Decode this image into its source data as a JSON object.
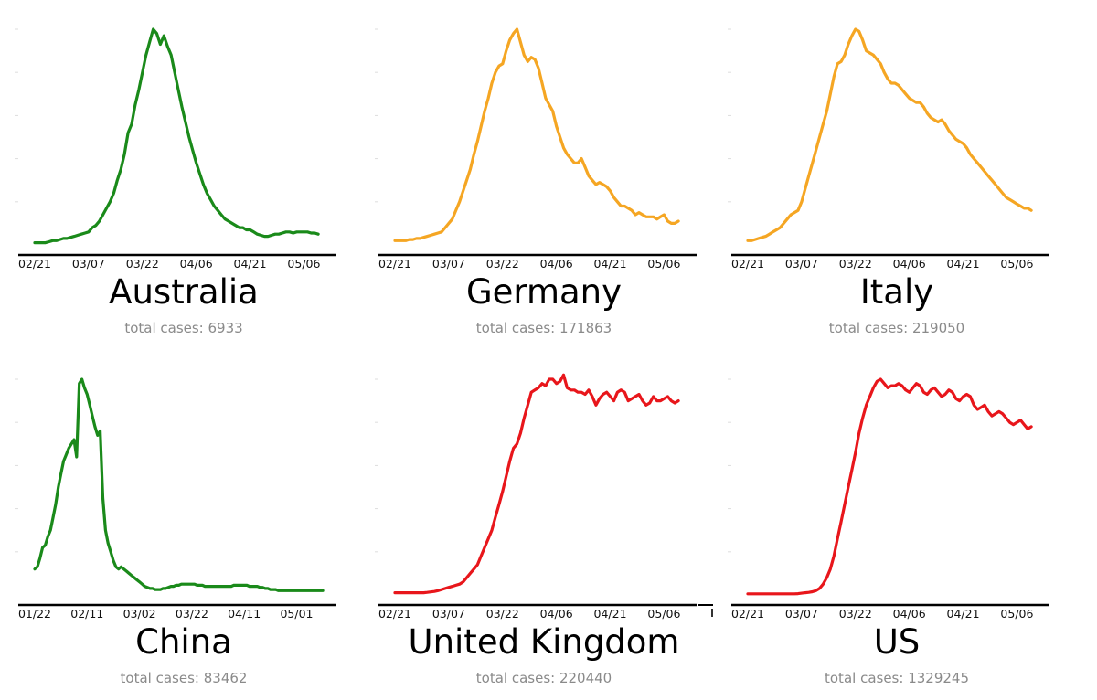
{
  "chart_data": [
    {
      "type": "line",
      "title": "Australia",
      "subtitle_label": "total cases: ",
      "subtitle_value": "6933",
      "color": "#1a8a1a",
      "x_ticks": [
        "02/21",
        "03/07",
        "03/22",
        "04/06",
        "04/21",
        "05/06"
      ],
      "tick_idx": [
        0,
        15,
        30,
        45,
        60,
        75
      ],
      "x_range": [
        0,
        81
      ],
      "ylim": [
        0,
        1
      ],
      "grid": false,
      "y": [
        0.01,
        0.01,
        0.01,
        0.01,
        0.015,
        0.02,
        0.02,
        0.025,
        0.03,
        0.03,
        0.035,
        0.04,
        0.045,
        0.05,
        0.055,
        0.06,
        0.08,
        0.09,
        0.11,
        0.14,
        0.17,
        0.2,
        0.24,
        0.3,
        0.35,
        0.42,
        0.52,
        0.56,
        0.65,
        0.72,
        0.8,
        0.88,
        0.94,
        1.0,
        0.98,
        0.93,
        0.97,
        0.92,
        0.88,
        0.8,
        0.72,
        0.64,
        0.57,
        0.5,
        0.44,
        0.38,
        0.33,
        0.28,
        0.24,
        0.21,
        0.18,
        0.16,
        0.14,
        0.12,
        0.11,
        0.1,
        0.09,
        0.08,
        0.08,
        0.07,
        0.07,
        0.06,
        0.05,
        0.045,
        0.04,
        0.04,
        0.045,
        0.05,
        0.05,
        0.055,
        0.06,
        0.06,
        0.055,
        0.06,
        0.06,
        0.06,
        0.06,
        0.055,
        0.055,
        0.05
      ]
    },
    {
      "type": "line",
      "title": "Germany",
      "subtitle_label": "total cases: ",
      "subtitle_value": "171863",
      "color": "#f5a623",
      "x_ticks": [
        "02/21",
        "03/07",
        "03/22",
        "04/06",
        "04/21",
        "05/06"
      ],
      "tick_idx": [
        0,
        15,
        30,
        45,
        60,
        75
      ],
      "x_range": [
        0,
        81
      ],
      "ylim": [
        0,
        1
      ],
      "grid": false,
      "y": [
        0.02,
        0.02,
        0.02,
        0.02,
        0.025,
        0.025,
        0.03,
        0.03,
        0.035,
        0.04,
        0.045,
        0.05,
        0.055,
        0.06,
        0.08,
        0.1,
        0.12,
        0.16,
        0.2,
        0.25,
        0.3,
        0.35,
        0.42,
        0.48,
        0.55,
        0.62,
        0.68,
        0.75,
        0.8,
        0.83,
        0.84,
        0.9,
        0.95,
        0.98,
        1.0,
        0.94,
        0.88,
        0.85,
        0.87,
        0.86,
        0.82,
        0.75,
        0.68,
        0.65,
        0.62,
        0.55,
        0.5,
        0.45,
        0.42,
        0.4,
        0.38,
        0.38,
        0.4,
        0.36,
        0.32,
        0.3,
        0.28,
        0.29,
        0.28,
        0.27,
        0.25,
        0.22,
        0.2,
        0.18,
        0.18,
        0.17,
        0.16,
        0.14,
        0.15,
        0.14,
        0.13,
        0.13,
        0.13,
        0.12,
        0.13,
        0.14,
        0.11,
        0.1,
        0.1,
        0.11
      ]
    },
    {
      "type": "line",
      "title": "Italy",
      "subtitle_label": "total cases: ",
      "subtitle_value": "219050",
      "color": "#f5a623",
      "x_ticks": [
        "02/21",
        "03/07",
        "03/22",
        "04/06",
        "04/21",
        "05/06"
      ],
      "tick_idx": [
        0,
        15,
        30,
        45,
        60,
        75
      ],
      "x_range": [
        0,
        81
      ],
      "ylim": [
        0,
        1
      ],
      "grid": false,
      "y": [
        0.02,
        0.02,
        0.025,
        0.03,
        0.035,
        0.04,
        0.05,
        0.06,
        0.07,
        0.08,
        0.1,
        0.12,
        0.14,
        0.15,
        0.16,
        0.2,
        0.26,
        0.32,
        0.38,
        0.44,
        0.5,
        0.56,
        0.62,
        0.7,
        0.78,
        0.84,
        0.85,
        0.88,
        0.93,
        0.97,
        1.0,
        0.99,
        0.95,
        0.9,
        0.89,
        0.88,
        0.86,
        0.84,
        0.8,
        0.77,
        0.75,
        0.75,
        0.74,
        0.72,
        0.7,
        0.68,
        0.67,
        0.66,
        0.66,
        0.64,
        0.61,
        0.59,
        0.58,
        0.57,
        0.58,
        0.56,
        0.53,
        0.51,
        0.49,
        0.48,
        0.47,
        0.45,
        0.42,
        0.4,
        0.38,
        0.36,
        0.34,
        0.32,
        0.3,
        0.28,
        0.26,
        0.24,
        0.22,
        0.21,
        0.2,
        0.19,
        0.18,
        0.17,
        0.17,
        0.16
      ]
    },
    {
      "type": "line",
      "title": "China",
      "subtitle_label": "total cases: ",
      "subtitle_value": "83462",
      "color": "#1a8a1a",
      "x_ticks": [
        "01/22",
        "02/11",
        "03/02",
        "03/22",
        "04/11",
        "05/01"
      ],
      "tick_idx": [
        0,
        20,
        40,
        60,
        80,
        100
      ],
      "x_range": [
        0,
        111
      ],
      "ylim": [
        0,
        1
      ],
      "grid": false,
      "y": [
        0.12,
        0.13,
        0.17,
        0.22,
        0.23,
        0.27,
        0.3,
        0.36,
        0.42,
        0.5,
        0.56,
        0.62,
        0.65,
        0.68,
        0.7,
        0.72,
        0.64,
        0.98,
        1.0,
        0.96,
        0.93,
        0.88,
        0.83,
        0.78,
        0.74,
        0.76,
        0.45,
        0.3,
        0.24,
        0.2,
        0.16,
        0.13,
        0.12,
        0.13,
        0.12,
        0.11,
        0.1,
        0.09,
        0.08,
        0.07,
        0.06,
        0.05,
        0.04,
        0.035,
        0.03,
        0.03,
        0.025,
        0.025,
        0.025,
        0.03,
        0.03,
        0.035,
        0.04,
        0.04,
        0.045,
        0.045,
        0.05,
        0.05,
        0.05,
        0.05,
        0.05,
        0.05,
        0.045,
        0.045,
        0.045,
        0.04,
        0.04,
        0.04,
        0.04,
        0.04,
        0.04,
        0.04,
        0.04,
        0.04,
        0.04,
        0.04,
        0.045,
        0.045,
        0.045,
        0.045,
        0.045,
        0.045,
        0.04,
        0.04,
        0.04,
        0.04,
        0.035,
        0.035,
        0.03,
        0.03,
        0.025,
        0.025,
        0.025,
        0.02,
        0.02,
        0.02,
        0.02,
        0.02,
        0.02,
        0.02,
        0.02,
        0.02,
        0.02,
        0.02,
        0.02,
        0.02,
        0.02,
        0.02,
        0.02,
        0.02,
        0.02
      ]
    },
    {
      "type": "line",
      "title": "United Kingdom",
      "subtitle_label": "total cases: ",
      "subtitle_value": "220440",
      "color": "#e8161b",
      "x_ticks": [
        "02/21",
        "03/07",
        "03/22",
        "04/06",
        "04/21",
        "05/06"
      ],
      "tick_idx": [
        0,
        15,
        30,
        45,
        60,
        75
      ],
      "x_range": [
        0,
        81
      ],
      "ylim": [
        0,
        1
      ],
      "grid": false,
      "y": [
        0.01,
        0.01,
        0.01,
        0.01,
        0.01,
        0.01,
        0.01,
        0.01,
        0.01,
        0.012,
        0.014,
        0.016,
        0.02,
        0.025,
        0.03,
        0.035,
        0.04,
        0.045,
        0.05,
        0.06,
        0.08,
        0.1,
        0.12,
        0.14,
        0.18,
        0.22,
        0.26,
        0.3,
        0.36,
        0.42,
        0.48,
        0.55,
        0.62,
        0.68,
        0.7,
        0.75,
        0.82,
        0.88,
        0.94,
        0.95,
        0.96,
        0.98,
        0.97,
        1.0,
        1.0,
        0.98,
        0.99,
        1.02,
        0.96,
        0.95,
        0.95,
        0.94,
        0.94,
        0.93,
        0.95,
        0.92,
        0.88,
        0.91,
        0.93,
        0.94,
        0.92,
        0.9,
        0.94,
        0.95,
        0.94,
        0.9,
        0.91,
        0.92,
        0.93,
        0.9,
        0.88,
        0.89,
        0.92,
        0.9,
        0.9,
        0.91,
        0.92,
        0.9,
        0.89,
        0.9
      ]
    },
    {
      "type": "line",
      "title": "US",
      "subtitle_label": "total cases: ",
      "subtitle_value": "1329245",
      "color": "#e8161b",
      "x_ticks": [
        "02/21",
        "03/07",
        "03/22",
        "04/06",
        "04/21",
        "05/06"
      ],
      "tick_idx": [
        0,
        15,
        30,
        45,
        60,
        75
      ],
      "x_range": [
        0,
        81
      ],
      "ylim": [
        0,
        1
      ],
      "grid": false,
      "y": [
        0.005,
        0.005,
        0.005,
        0.005,
        0.005,
        0.005,
        0.005,
        0.005,
        0.005,
        0.005,
        0.005,
        0.005,
        0.005,
        0.005,
        0.006,
        0.008,
        0.01,
        0.012,
        0.015,
        0.02,
        0.03,
        0.05,
        0.08,
        0.12,
        0.18,
        0.26,
        0.34,
        0.42,
        0.5,
        0.58,
        0.66,
        0.75,
        0.82,
        0.88,
        0.92,
        0.96,
        0.99,
        1.0,
        0.98,
        0.96,
        0.97,
        0.97,
        0.98,
        0.97,
        0.95,
        0.94,
        0.96,
        0.98,
        0.97,
        0.94,
        0.93,
        0.95,
        0.96,
        0.94,
        0.92,
        0.93,
        0.95,
        0.94,
        0.91,
        0.9,
        0.92,
        0.93,
        0.92,
        0.88,
        0.86,
        0.87,
        0.88,
        0.85,
        0.83,
        0.84,
        0.85,
        0.84,
        0.82,
        0.8,
        0.79,
        0.8,
        0.81,
        0.79,
        0.77,
        0.78
      ]
    }
  ]
}
